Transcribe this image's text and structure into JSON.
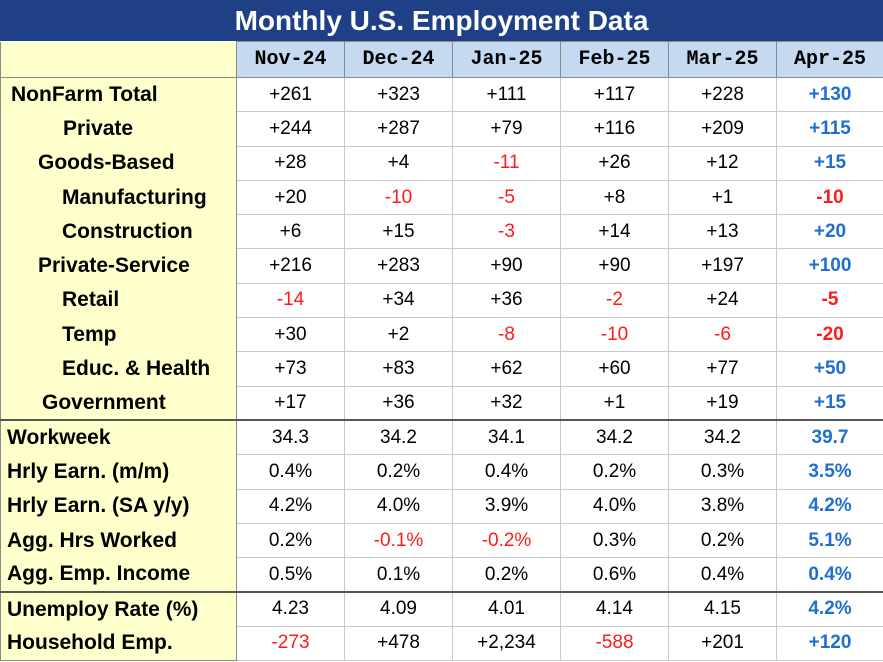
{
  "title": "Monthly U.S. Employment Data",
  "months": [
    "Nov-24",
    "Dec-24",
    "Jan-25",
    "Feb-25",
    "Mar-25",
    "Apr-25"
  ],
  "colors": {
    "title_bg": "#1f3f86",
    "header_bg": "#c5d9f1",
    "label_bg": "#ffffcc",
    "negative": "#ff1a1a",
    "latest": "#1f6fd1"
  },
  "rows": [
    {
      "label": "NonFarm Total",
      "values": [
        "+261",
        "+323",
        "+111",
        "+117",
        "+228",
        "+130"
      ]
    },
    {
      "label": "Private",
      "values": [
        "+244",
        "+287",
        "+79",
        "+116",
        "+209",
        "+115"
      ]
    },
    {
      "label": "Goods-Based",
      "values": [
        "+28",
        "+4",
        "-11",
        "+26",
        "+12",
        "+15"
      ]
    },
    {
      "label": "Manufacturing",
      "values": [
        "+20",
        "-10",
        "-5",
        "+8",
        "+1",
        "-10"
      ]
    },
    {
      "label": "Construction",
      "values": [
        "+6",
        "+15",
        "-3",
        "+14",
        "+13",
        "+20"
      ]
    },
    {
      "label": "Private-Service",
      "values": [
        "+216",
        "+283",
        "+90",
        "+90",
        "+197",
        "+100"
      ]
    },
    {
      "label": "Retail",
      "values": [
        "-14",
        "+34",
        "+36",
        "-2",
        "+24",
        "-5"
      ]
    },
    {
      "label": "Temp",
      "values": [
        "+30",
        "+2",
        "-8",
        "-10",
        "-6",
        "-20"
      ]
    },
    {
      "label": "Educ. & Health",
      "values": [
        "+73",
        "+83",
        "+62",
        "+60",
        "+77",
        "+50"
      ]
    },
    {
      "label": "Government",
      "values": [
        "+17",
        "+36",
        "+32",
        "+1",
        "+19",
        "+15"
      ]
    },
    {
      "label": "Workweek",
      "values": [
        "34.3",
        "34.2",
        "34.1",
        "34.2",
        "34.2",
        "39.7"
      ]
    },
    {
      "label": "Hrly Earn. (m/m)",
      "values": [
        "0.4%",
        "0.2%",
        "0.4%",
        "0.2%",
        "0.3%",
        "3.5%"
      ]
    },
    {
      "label": "Hrly Earn. (SA y/y)",
      "values": [
        "4.2%",
        "4.0%",
        "3.9%",
        "4.0%",
        "3.8%",
        "4.2%"
      ]
    },
    {
      "label": "Agg. Hrs Worked",
      "values": [
        "0.2%",
        "-0.1%",
        "-0.2%",
        "0.3%",
        "0.2%",
        "5.1%"
      ]
    },
    {
      "label": "Agg. Emp. Income",
      "values": [
        "0.5%",
        "0.1%",
        "0.2%",
        "0.6%",
        "0.4%",
        "0.4%"
      ]
    },
    {
      "label": "Unemploy Rate (%)",
      "values": [
        "4.23",
        "4.09",
        "4.01",
        "4.14",
        "4.15",
        "4.2%"
      ]
    },
    {
      "label": "Household Emp.",
      "values": [
        "-273",
        "+478",
        "+2,234",
        "-588",
        "+201",
        "+120"
      ]
    }
  ]
}
